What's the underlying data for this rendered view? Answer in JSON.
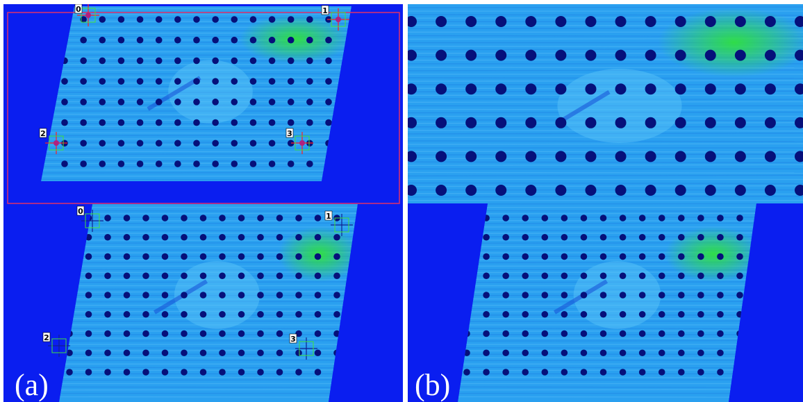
{
  "panels": [
    {
      "id": "a",
      "label": "(a)",
      "markers_top": [
        "0",
        "1",
        "2",
        "3"
      ],
      "markers_bottom": [
        "0",
        "1",
        "2",
        "3"
      ]
    },
    {
      "id": "b",
      "label": "(b)"
    }
  ],
  "colors": {
    "background_blue": "#0a1ef0",
    "specimen_cyan": "#2aa0f0",
    "hole_navy": "#06107a",
    "strain_green": "#30e040",
    "roi_frame": "#e0306a",
    "marker_red": "#ff2020",
    "marker_green": "#40e040"
  }
}
